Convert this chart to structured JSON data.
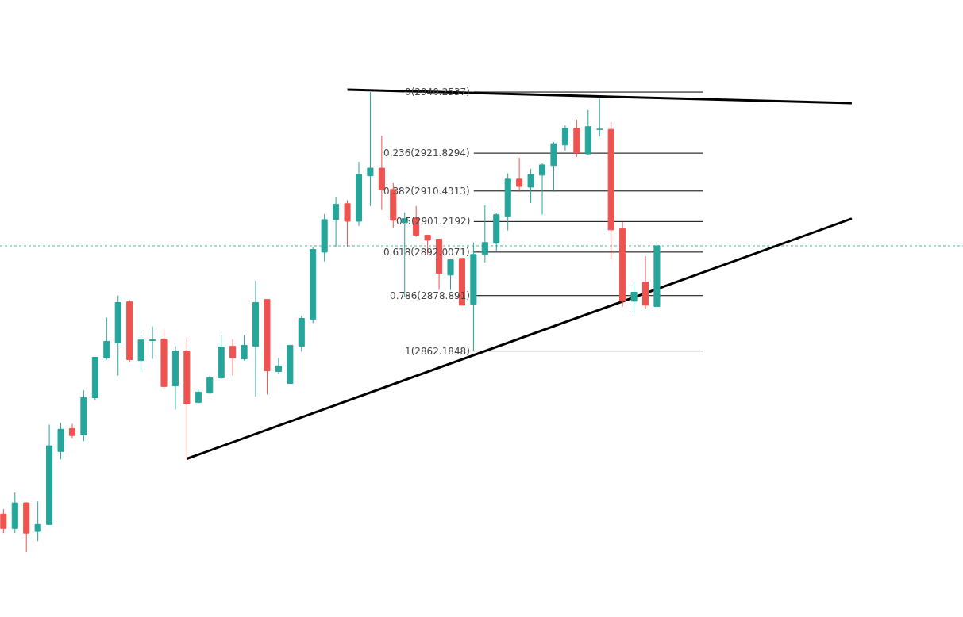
{
  "chart_data": {
    "type": "candlestick",
    "categories": [
      null,
      null,
      null,
      null,
      null,
      null,
      null,
      null,
      null,
      null,
      null,
      null,
      null,
      null,
      null,
      null,
      null,
      null,
      null,
      null,
      null,
      null,
      null,
      null,
      null,
      null,
      null,
      null,
      null,
      null,
      null,
      null,
      null,
      null,
      null,
      null,
      null,
      null,
      null,
      null,
      null,
      null,
      null,
      null,
      null,
      null,
      null,
      null,
      null,
      null,
      null,
      null,
      null,
      null,
      null,
      null,
      null,
      null,
      null,
      null,
      null,
      null,
      null,
      null,
      null,
      null,
      null,
      null,
      null,
      null,
      null,
      null,
      null,
      null,
      null,
      null,
      null,
      null,
      null,
      null,
      null,
      null,
      null,
      null
    ],
    "ohlc": [
      [
        2813.0,
        2814.5,
        2807.3,
        2808.7
      ],
      [
        2808.7,
        2819.5,
        2807.3,
        2816.4
      ],
      [
        2816.4,
        2816.6,
        2801.6,
        2807.3
      ],
      [
        2807.8,
        2816.8,
        2804.9,
        2809.9
      ],
      [
        2809.9,
        2840.0,
        2809.7,
        2833.6
      ],
      [
        2831.9,
        2840.5,
        2829.5,
        2838.6
      ],
      [
        2838.8,
        2840.2,
        2835.9,
        2836.7
      ],
      [
        2836.9,
        2850.3,
        2835.0,
        2848.1
      ],
      [
        2848.1,
        2860.3,
        2847.4,
        2860.3
      ],
      [
        2860.1,
        2872.2,
        2859.6,
        2865.1
      ],
      [
        2864.6,
        2878.9,
        2854.8,
        2876.8
      ],
      [
        2877.0,
        2877.5,
        2858.9,
        2859.6
      ],
      [
        2859.3,
        2867.0,
        2855.8,
        2865.5
      ],
      [
        2865.3,
        2869.6,
        2859.8,
        2865.5
      ],
      [
        2865.8,
        2868.6,
        2850.7,
        2851.5
      ],
      [
        2851.7,
        2863.6,
        2844.5,
        2862.2
      ],
      [
        2862.2,
        2866.3,
        2829.5,
        2846.2
      ],
      [
        2846.7,
        2850.5,
        2846.4,
        2849.8
      ],
      [
        2849.5,
        2854.8,
        2849.3,
        2854.1
      ],
      [
        2854.1,
        2867.0,
        2853.8,
        2863.4
      ],
      [
        2863.6,
        2865.8,
        2854.8,
        2860.1
      ],
      [
        2859.8,
        2867.0,
        2859.3,
        2863.9
      ],
      [
        2863.6,
        2883.4,
        2848.4,
        2876.8
      ],
      [
        2877.7,
        2877.7,
        2849.1,
        2856.2
      ],
      [
        2856.0,
        2860.1,
        2855.3,
        2857.7
      ],
      [
        2852.4,
        2863.9,
        2852.4,
        2863.9
      ],
      [
        2863.6,
        2872.7,
        2862.0,
        2872.0
      ],
      [
        2871.7,
        2893.5,
        2870.6,
        2892.8
      ],
      [
        2892.0,
        2903.5,
        2889.2,
        2901.8
      ],
      [
        2901.8,
        2908.7,
        2893.5,
        2906.4
      ],
      [
        2906.6,
        2907.6,
        2893.5,
        2901.3
      ],
      [
        2901.3,
        2919.2,
        2899.9,
        2915.4
      ],
      [
        2915.0,
        2940.25,
        2905.9,
        2917.3
      ],
      [
        2917.3,
        2927.1,
        2904.7,
        2910.9
      ],
      [
        2910.9,
        2912.8,
        2899.2,
        2901.6
      ],
      [
        2900.9,
        2904.0,
        2878.4,
        2902.1
      ],
      [
        2902.3,
        2905.9,
        2896.6,
        2897.1
      ],
      [
        2897.1,
        2897.1,
        2891.1,
        2895.6
      ],
      [
        2895.9,
        2895.9,
        2880.6,
        2885.6
      ],
      [
        2885.1,
        2889.7,
        2880.6,
        2889.7
      ],
      [
        2890.1,
        2890.1,
        2876.0,
        2876.0
      ],
      [
        2876.3,
        2894.9,
        2862.18,
        2891.3
      ],
      [
        2891.3,
        2906.1,
        2888.9,
        2894.9
      ],
      [
        2894.7,
        2903.7,
        2892.3,
        2903.3
      ],
      [
        2902.8,
        2915.7,
        2898.5,
        2914.0
      ],
      [
        2914.0,
        2920.4,
        2910.2,
        2911.8
      ],
      [
        2911.6,
        2917.1,
        2906.8,
        2915.4
      ],
      [
        2915.2,
        2918.8,
        2903.3,
        2918.3
      ],
      [
        2918.1,
        2925.2,
        2910.2,
        2924.7
      ],
      [
        2924.3,
        2930.2,
        2922.6,
        2929.3
      ],
      [
        2929.3,
        2931.9,
        2920.7,
        2921.9
      ],
      [
        2921.6,
        2934.8,
        2921.4,
        2929.8
      ],
      [
        2929.0,
        2938.3,
        2926.9,
        2929.0
      ],
      [
        2929.0,
        2931.2,
        2889.7,
        2898.7
      ],
      [
        2899.0,
        2901.1,
        2875.6,
        2877.2
      ],
      [
        2877.2,
        2883.0,
        2873.4,
        2879.9
      ],
      [
        2883.0,
        2890.8,
        2874.9,
        2876.0
      ],
      [
        2875.6,
        2894.7,
        2875.6,
        2893.9
      ],
      null,
      null,
      null,
      null,
      null,
      null,
      null,
      null,
      null,
      null,
      null,
      null,
      null,
      null,
      null,
      null,
      null,
      null,
      null,
      null,
      null,
      null,
      null,
      null,
      null,
      null
    ],
    "colors": [
      "#ef5350",
      "#26a69a",
      "#ef5350",
      "#26a69a",
      "#26a69a",
      "#26a69a",
      "#ef5350",
      "#26a69a",
      "#26a69a",
      "#26a69a",
      "#26a69a",
      "#ef5350",
      "#26a69a",
      "#26a69a",
      "#ef5350",
      "#26a69a",
      "#ef5350",
      "#26a69a",
      "#26a69a",
      "#26a69a",
      "#ef5350",
      "#26a69a",
      "#26a69a",
      "#ef5350",
      "#26a69a",
      "#26a69a",
      "#26a69a",
      "#26a69a",
      "#26a69a",
      "#26a69a",
      "#ef5350",
      "#26a69a",
      "#26a69a",
      "#ef5350",
      "#ef5350",
      "#26a69a",
      "#ef5350",
      "#ef5350",
      "#ef5350",
      "#26a69a",
      "#ef5350",
      "#26a69a",
      "#26a69a",
      "#26a69a",
      "#26a69a",
      "#ef5350",
      "#26a69a",
      "#26a69a",
      "#26a69a",
      "#26a69a",
      "#ef5350",
      "#26a69a",
      "#26a69a",
      "#ef5350",
      "#ef5350",
      "#26a69a",
      "#ef5350",
      "#26a69a",
      null,
      null,
      null,
      null,
      null,
      null,
      null,
      null,
      null,
      null,
      null,
      null,
      null,
      null,
      null,
      null,
      null,
      null,
      null,
      null,
      null,
      null,
      null,
      null,
      null,
      null
    ],
    "series": [
      {
        "type": "line",
        "color": "#000000",
        "values": [
          null,
          null,
          null,
          null,
          null,
          null,
          null,
          null,
          null,
          null,
          null,
          null,
          null,
          null,
          null,
          null,
          null,
          null,
          null,
          null,
          null,
          null,
          null,
          null,
          null,
          null,
          null,
          null,
          null,
          null,
          2941.0,
          null,
          null,
          null,
          null,
          null,
          null,
          null,
          null,
          null,
          null,
          null,
          null,
          null,
          null,
          null,
          null,
          null,
          null,
          null,
          null,
          null,
          null,
          null,
          null,
          null,
          null,
          null,
          null,
          null,
          null,
          null,
          null,
          null,
          null,
          null,
          null,
          null,
          null,
          null,
          null,
          null,
          null,
          null,
          2936.9,
          null,
          null,
          null,
          null,
          null,
          null,
          null,
          null,
          null
        ]
      },
      {
        "type": "line",
        "color": "#000000",
        "values": [
          null,
          null,
          null,
          null,
          null,
          null,
          null,
          null,
          null,
          null,
          null,
          null,
          null,
          null,
          null,
          null,
          2829.7,
          null,
          null,
          null,
          null,
          null,
          null,
          null,
          null,
          null,
          null,
          null,
          null,
          null,
          null,
          null,
          null,
          null,
          null,
          null,
          null,
          null,
          null,
          null,
          null,
          null,
          null,
          null,
          null,
          null,
          null,
          null,
          null,
          null,
          null,
          null,
          null,
          null,
          null,
          null,
          null,
          null,
          null,
          null,
          null,
          null,
          null,
          null,
          null,
          null,
          null,
          null,
          null,
          null,
          null,
          null,
          null,
          null,
          2902.1,
          null,
          null,
          null,
          null,
          null,
          null,
          null,
          null,
          null
        ]
      }
    ],
    "ref_lines": [
      {
        "axis": "y",
        "value": 2940.2537,
        "label": "0(2940.2537)",
        "color": "#000000",
        "line_style": "solid"
      },
      {
        "axis": "y",
        "value": 2921.8294,
        "label": "0.236(2921.8294)",
        "color": "#000000",
        "line_style": "solid"
      },
      {
        "axis": "y",
        "value": 2910.4313,
        "label": "0.382(2910.4313)",
        "color": "#000000",
        "line_style": "solid"
      },
      {
        "axis": "y",
        "value": 2901.2192,
        "label": "0.5(2901.2192)",
        "color": "#000000",
        "line_style": "solid"
      },
      {
        "axis": "y",
        "value": 2892.0071,
        "label": "0.618(2892.0071)",
        "color": "#000000",
        "line_style": "solid"
      },
      {
        "axis": "y",
        "value": 2878.891,
        "label": "0.786(2878.891)",
        "color": "#000000",
        "line_style": "solid"
      },
      {
        "axis": "y",
        "value": 2862.1848,
        "label": "1(2862.1848)",
        "color": "#000000",
        "line_style": "solid"
      },
      {
        "axis": "y",
        "value": 2893.9,
        "label": null,
        "color": "#4db6ac",
        "line_style": "dotted"
      }
    ],
    "ylim": [
      2782,
      2968
    ],
    "tick_labels": false
  }
}
